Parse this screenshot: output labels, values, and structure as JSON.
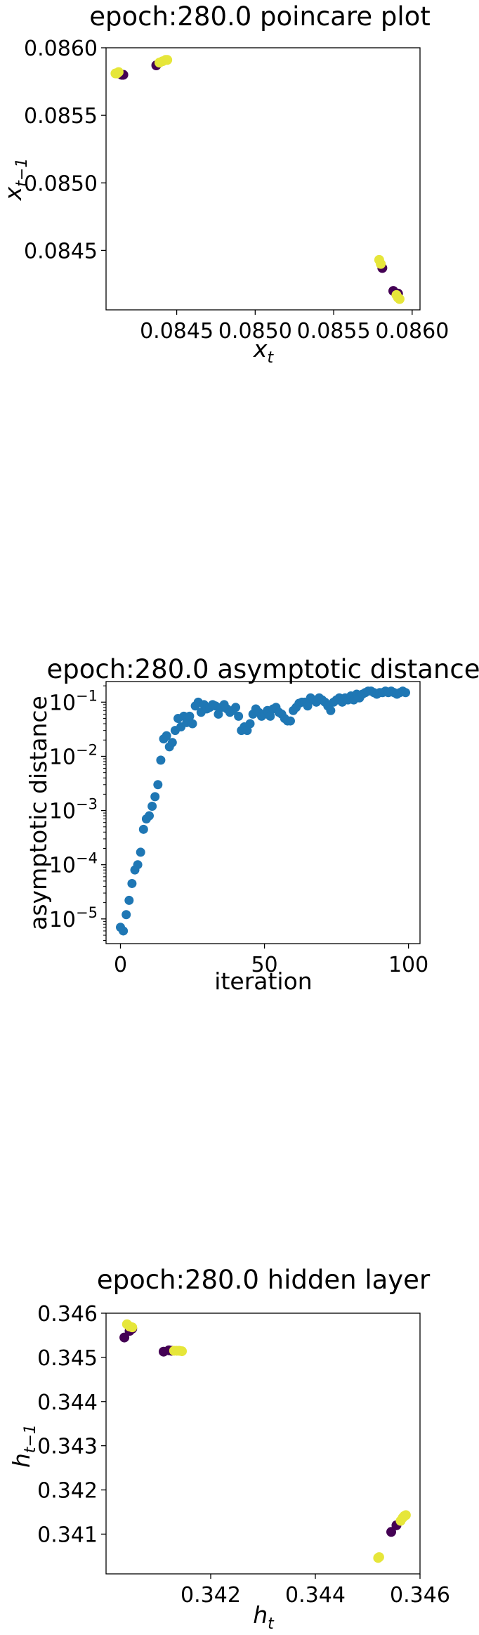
{
  "chart_data": [
    {
      "type": "scatter",
      "title": "epoch:280.0 poincare plot",
      "xlabel_base": "x",
      "xlabel_sub": "t",
      "ylabel_base": "x",
      "ylabel_sub": "t−1",
      "xlim": [
        0.08405,
        0.08605
      ],
      "ylim": [
        0.08406,
        0.086
      ],
      "xticks": [
        0.0845,
        0.085,
        0.0855,
        0.086
      ],
      "xtick_labels": [
        "0.0845",
        "0.0850",
        "0.0855",
        "0.0860"
      ],
      "yticks": [
        0.0845,
        0.085,
        0.0855,
        0.086
      ],
      "ytick_labels": [
        "0.0845",
        "0.0850",
        "0.0855",
        "0.0860"
      ],
      "colors": {
        "dark": "#440154",
        "light": "#e6e63a"
      },
      "points": [
        [
          0.08413,
          0.08581,
          "dark"
        ],
        [
          0.08415,
          0.0858,
          "dark"
        ],
        [
          0.08416,
          0.0858,
          "dark"
        ],
        [
          0.08411,
          0.08581,
          "light"
        ],
        [
          0.08412,
          0.08581,
          "light"
        ],
        [
          0.08413,
          0.08582,
          "light"
        ],
        [
          0.08437,
          0.08587,
          "dark"
        ],
        [
          0.08439,
          0.08589,
          "light"
        ],
        [
          0.08441,
          0.0859,
          "light"
        ],
        [
          0.08443,
          0.08591,
          "light"
        ],
        [
          0.08444,
          0.08591,
          "light"
        ],
        [
          0.08581,
          0.08437,
          "dark"
        ],
        [
          0.08588,
          0.0842,
          "dark"
        ],
        [
          0.08591,
          0.08418,
          "dark"
        ],
        [
          0.08579,
          0.08443,
          "light"
        ],
        [
          0.0858,
          0.0844,
          "light"
        ],
        [
          0.0859,
          0.08417,
          "light"
        ],
        [
          0.08591,
          0.08415,
          "light"
        ],
        [
          0.08592,
          0.08414,
          "light"
        ]
      ]
    },
    {
      "type": "scatter",
      "title": "epoch:280.0 asymptotic distance",
      "xlabel": "iteration",
      "ylabel": "asymptotic distance",
      "yscale": "log",
      "xlim": [
        -5,
        104
      ],
      "ylim": [
        3.5e-06,
        0.24
      ],
      "xticks": [
        0,
        50,
        100
      ],
      "xtick_labels": [
        "0",
        "50",
        "100"
      ],
      "yticks": [
        1e-05,
        0.0001,
        0.001,
        0.01,
        0.1
      ],
      "ytick_bases": [
        "10",
        "10",
        "10",
        "10",
        "10"
      ],
      "ytick_exps": [
        "−5",
        "−4",
        "−3",
        "−2",
        "−1"
      ],
      "color": "#1f77b4",
      "x": [
        0,
        1,
        2,
        3,
        4,
        5,
        6,
        7,
        8,
        9,
        10,
        11,
        12,
        13,
        14,
        15,
        16,
        17,
        18,
        19,
        20,
        21,
        22,
        23,
        24,
        25,
        26,
        27,
        28,
        29,
        30,
        31,
        32,
        33,
        34,
        35,
        36,
        37,
        38,
        39,
        40,
        41,
        42,
        43,
        44,
        45,
        46,
        47,
        48,
        49,
        50,
        51,
        52,
        53,
        54,
        55,
        56,
        57,
        58,
        59,
        60,
        61,
        62,
        63,
        64,
        65,
        66,
        67,
        68,
        69,
        70,
        71,
        72,
        73,
        74,
        75,
        76,
        77,
        78,
        79,
        80,
        81,
        82,
        83,
        84,
        85,
        86,
        87,
        88,
        89,
        90,
        91,
        92,
        93,
        94,
        95,
        96,
        97,
        98,
        99
      ],
      "y": [
        7e-06,
        6e-06,
        1.2e-05,
        2.2e-05,
        4.5e-05,
        8e-05,
        0.0001,
        0.00017,
        0.00045,
        0.0007,
        0.0008,
        0.0012,
        0.0018,
        0.003,
        0.0085,
        0.021,
        0.024,
        0.015,
        0.018,
        0.03,
        0.05,
        0.035,
        0.055,
        0.042,
        0.055,
        0.04,
        0.085,
        0.1,
        0.065,
        0.09,
        0.075,
        0.08,
        0.09,
        0.085,
        0.06,
        0.08,
        0.09,
        0.075,
        0.065,
        0.07,
        0.08,
        0.055,
        0.03,
        0.035,
        0.03,
        0.04,
        0.06,
        0.075,
        0.065,
        0.055,
        0.06,
        0.07,
        0.055,
        0.075,
        0.08,
        0.065,
        0.06,
        0.05,
        0.045,
        0.045,
        0.07,
        0.08,
        0.095,
        0.1,
        0.1,
        0.085,
        0.12,
        0.11,
        0.1,
        0.12,
        0.11,
        0.1,
        0.085,
        0.07,
        0.1,
        0.11,
        0.12,
        0.1,
        0.12,
        0.11,
        0.13,
        0.11,
        0.14,
        0.12,
        0.14,
        0.15,
        0.16,
        0.16,
        0.15,
        0.14,
        0.15,
        0.15,
        0.16,
        0.15,
        0.16,
        0.15,
        0.14,
        0.15,
        0.16,
        0.15
      ]
    },
    {
      "type": "scatter",
      "title": "epoch:280.0 hidden layer",
      "xlabel_base": "h",
      "xlabel_sub": "t",
      "ylabel_base": "h",
      "ylabel_sub": "t−1",
      "xlim": [
        0.34,
        0.346
      ],
      "ylim": [
        0.3401,
        0.346
      ],
      "xticks": [
        0.342,
        0.344,
        0.346
      ],
      "xtick_labels": [
        "0.342",
        "0.344",
        "0.346"
      ],
      "yticks": [
        0.341,
        0.342,
        0.343,
        0.344,
        0.345,
        0.346
      ],
      "ytick_labels": [
        "0.341",
        "0.342",
        "0.343",
        "0.344",
        "0.345",
        "0.346"
      ],
      "colors": {
        "dark": "#440154",
        "light": "#e6e63a"
      },
      "points": [
        [
          0.34035,
          0.34545,
          "dark"
        ],
        [
          0.34045,
          0.3456,
          "dark"
        ],
        [
          0.3405,
          0.34565,
          "dark"
        ],
        [
          0.3404,
          0.34575,
          "light"
        ],
        [
          0.34045,
          0.3457,
          "light"
        ],
        [
          0.3405,
          0.34568,
          "light"
        ],
        [
          0.3411,
          0.34513,
          "dark"
        ],
        [
          0.3412,
          0.34516,
          "dark"
        ],
        [
          0.34125,
          0.34515,
          "dark"
        ],
        [
          0.3413,
          0.34515,
          "light"
        ],
        [
          0.34135,
          0.34515,
          "light"
        ],
        [
          0.3414,
          0.34515,
          "light"
        ],
        [
          0.34145,
          0.34514,
          "light"
        ],
        [
          0.3452,
          0.34046,
          "light"
        ],
        [
          0.34522,
          0.34048,
          "light"
        ],
        [
          0.34545,
          0.34105,
          "dark"
        ],
        [
          0.34555,
          0.3412,
          "dark"
        ],
        [
          0.34563,
          0.3413,
          "light"
        ],
        [
          0.34567,
          0.34137,
          "light"
        ],
        [
          0.3457,
          0.34141,
          "light"
        ],
        [
          0.34573,
          0.34143,
          "light"
        ]
      ]
    }
  ]
}
